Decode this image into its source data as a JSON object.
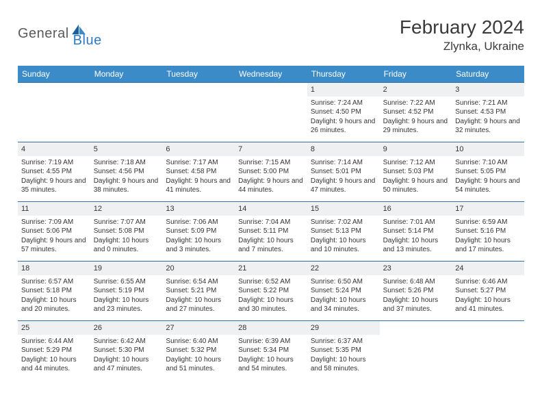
{
  "logo": {
    "word1": "General",
    "word2": "Blue"
  },
  "title": "February 2024",
  "location": "Zlynka, Ukraine",
  "colors": {
    "header_bg": "#3b8bc9",
    "header_text": "#ffffff",
    "row_border": "#2f6fa8",
    "daynum_bg": "#eef0f2",
    "text": "#333333",
    "logo_gray": "#5a5a5a",
    "logo_blue": "#2f7ac2"
  },
  "weekdays": [
    "Sunday",
    "Monday",
    "Tuesday",
    "Wednesday",
    "Thursday",
    "Friday",
    "Saturday"
  ],
  "weeks": [
    [
      null,
      null,
      null,
      null,
      {
        "n": "1",
        "sr": "7:24 AM",
        "ss": "4:50 PM",
        "dl": "9 hours and 26 minutes."
      },
      {
        "n": "2",
        "sr": "7:22 AM",
        "ss": "4:52 PM",
        "dl": "9 hours and 29 minutes."
      },
      {
        "n": "3",
        "sr": "7:21 AM",
        "ss": "4:53 PM",
        "dl": "9 hours and 32 minutes."
      }
    ],
    [
      {
        "n": "4",
        "sr": "7:19 AM",
        "ss": "4:55 PM",
        "dl": "9 hours and 35 minutes."
      },
      {
        "n": "5",
        "sr": "7:18 AM",
        "ss": "4:56 PM",
        "dl": "9 hours and 38 minutes."
      },
      {
        "n": "6",
        "sr": "7:17 AM",
        "ss": "4:58 PM",
        "dl": "9 hours and 41 minutes."
      },
      {
        "n": "7",
        "sr": "7:15 AM",
        "ss": "5:00 PM",
        "dl": "9 hours and 44 minutes."
      },
      {
        "n": "8",
        "sr": "7:14 AM",
        "ss": "5:01 PM",
        "dl": "9 hours and 47 minutes."
      },
      {
        "n": "9",
        "sr": "7:12 AM",
        "ss": "5:03 PM",
        "dl": "9 hours and 50 minutes."
      },
      {
        "n": "10",
        "sr": "7:10 AM",
        "ss": "5:05 PM",
        "dl": "9 hours and 54 minutes."
      }
    ],
    [
      {
        "n": "11",
        "sr": "7:09 AM",
        "ss": "5:06 PM",
        "dl": "9 hours and 57 minutes."
      },
      {
        "n": "12",
        "sr": "7:07 AM",
        "ss": "5:08 PM",
        "dl": "10 hours and 0 minutes."
      },
      {
        "n": "13",
        "sr": "7:06 AM",
        "ss": "5:09 PM",
        "dl": "10 hours and 3 minutes."
      },
      {
        "n": "14",
        "sr": "7:04 AM",
        "ss": "5:11 PM",
        "dl": "10 hours and 7 minutes."
      },
      {
        "n": "15",
        "sr": "7:02 AM",
        "ss": "5:13 PM",
        "dl": "10 hours and 10 minutes."
      },
      {
        "n": "16",
        "sr": "7:01 AM",
        "ss": "5:14 PM",
        "dl": "10 hours and 13 minutes."
      },
      {
        "n": "17",
        "sr": "6:59 AM",
        "ss": "5:16 PM",
        "dl": "10 hours and 17 minutes."
      }
    ],
    [
      {
        "n": "18",
        "sr": "6:57 AM",
        "ss": "5:18 PM",
        "dl": "10 hours and 20 minutes."
      },
      {
        "n": "19",
        "sr": "6:55 AM",
        "ss": "5:19 PM",
        "dl": "10 hours and 23 minutes."
      },
      {
        "n": "20",
        "sr": "6:54 AM",
        "ss": "5:21 PM",
        "dl": "10 hours and 27 minutes."
      },
      {
        "n": "21",
        "sr": "6:52 AM",
        "ss": "5:22 PM",
        "dl": "10 hours and 30 minutes."
      },
      {
        "n": "22",
        "sr": "6:50 AM",
        "ss": "5:24 PM",
        "dl": "10 hours and 34 minutes."
      },
      {
        "n": "23",
        "sr": "6:48 AM",
        "ss": "5:26 PM",
        "dl": "10 hours and 37 minutes."
      },
      {
        "n": "24",
        "sr": "6:46 AM",
        "ss": "5:27 PM",
        "dl": "10 hours and 41 minutes."
      }
    ],
    [
      {
        "n": "25",
        "sr": "6:44 AM",
        "ss": "5:29 PM",
        "dl": "10 hours and 44 minutes."
      },
      {
        "n": "26",
        "sr": "6:42 AM",
        "ss": "5:30 PM",
        "dl": "10 hours and 47 minutes."
      },
      {
        "n": "27",
        "sr": "6:40 AM",
        "ss": "5:32 PM",
        "dl": "10 hours and 51 minutes."
      },
      {
        "n": "28",
        "sr": "6:39 AM",
        "ss": "5:34 PM",
        "dl": "10 hours and 54 minutes."
      },
      {
        "n": "29",
        "sr": "6:37 AM",
        "ss": "5:35 PM",
        "dl": "10 hours and 58 minutes."
      },
      null,
      null
    ]
  ],
  "labels": {
    "sunrise": "Sunrise: ",
    "sunset": "Sunset: ",
    "daylight": "Daylight: "
  }
}
